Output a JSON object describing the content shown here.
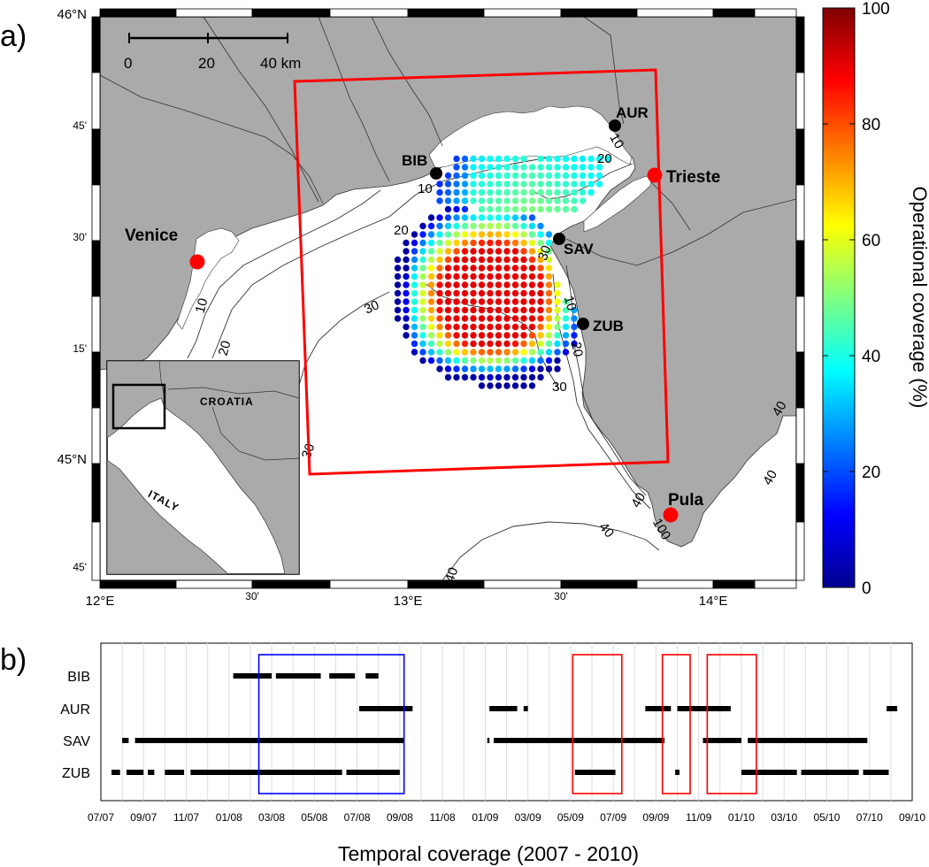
{
  "panel_labels": {
    "a": "a)",
    "b": "b)"
  },
  "map": {
    "lat_labels": [
      "46°N",
      "45'",
      "30'",
      "15'",
      "45°N",
      "45'"
    ],
    "lon_labels": [
      "12°E",
      "30'",
      "13°E",
      "30'",
      "14°E"
    ],
    "scale_bar": {
      "ticks": [
        "0",
        "20",
        "40 km"
      ]
    },
    "cities": [
      "Venice",
      "Trieste",
      "Pula"
    ],
    "stations": [
      "BIB",
      "AUR",
      "SAV",
      "ZUB"
    ],
    "contour_labels": [
      "10",
      "20",
      "10",
      "20",
      "30",
      "30",
      "10",
      "20",
      "30",
      "10",
      "20",
      "30",
      "40",
      "40",
      "40",
      "40",
      "40",
      "100"
    ],
    "inset_labels": {
      "croatia": "CROATIA",
      "italy": "ITALY"
    },
    "colors": {
      "land": "#aaaaaa",
      "sea": "#ffffff",
      "domain_box": "#ff0000",
      "city_marker": "#ff0000",
      "station_marker": "#000000"
    }
  },
  "colorbar": {
    "label": "Operational coverage (%)",
    "ticks": [
      "100",
      "80",
      "60",
      "40",
      "20",
      "0"
    ],
    "colormap": "jet",
    "range": [
      0,
      100
    ]
  },
  "chart_data": [
    {
      "type": "scatter",
      "description_of_values": "gridded HF radar operational coverage (%) over the northern Adriatic",
      "colorbar_range": [
        0,
        100
      ],
      "max_coverage_region": "central grid about 85-90 %",
      "min_coverage_region": "grid edges about 5-25 %",
      "stations": [
        "BIB",
        "AUR",
        "SAV",
        "ZUB"
      ]
    },
    {
      "type": "timeline",
      "xlabel": "Temporal coverage (2007 - 2010)",
      "x_tick_labels": [
        "07/07",
        "09/07",
        "11/07",
        "01/08",
        "03/08",
        "05/08",
        "07/08",
        "09/08",
        "11/08",
        "01/09",
        "03/09",
        "05/09",
        "07/09",
        "09/09",
        "11/09",
        "01/10",
        "03/10",
        "05/10",
        "07/10",
        "09/10"
      ],
      "x_range_month_index": [
        0,
        38
      ],
      "stations": [
        "BIB",
        "AUR",
        "SAV",
        "ZUB"
      ],
      "coverage_months": {
        "BIB": [
          [
            6.2,
            8.0
          ],
          [
            8.2,
            10.3
          ],
          [
            10.7,
            11.9
          ],
          [
            12.4,
            13.0
          ]
        ],
        "AUR": [
          [
            12.1,
            14.6
          ],
          [
            18.2,
            19.5
          ],
          [
            19.8,
            20.0
          ],
          [
            25.5,
            26.7
          ],
          [
            27.0,
            29.5
          ],
          [
            36.8,
            37.3
          ]
        ],
        "SAV": [
          [
            1.0,
            1.3
          ],
          [
            1.6,
            14.2
          ],
          [
            18.1,
            18.2
          ],
          [
            18.4,
            26.4
          ],
          [
            28.2,
            30.0
          ],
          [
            30.3,
            35.9
          ]
        ],
        "ZUB": [
          [
            0.5,
            0.9
          ],
          [
            1.2,
            2.0
          ],
          [
            2.2,
            2.5
          ],
          [
            3.0,
            3.9
          ],
          [
            4.2,
            11.3
          ],
          [
            11.5,
            14.0
          ],
          [
            22.2,
            24.1
          ],
          [
            26.9,
            27.1
          ],
          [
            30.0,
            32.6
          ],
          [
            32.8,
            35.5
          ],
          [
            35.7,
            36.9
          ]
        ]
      },
      "highlight_boxes": [
        {
          "color": "#0000ff",
          "start": 7.4,
          "end": 14.2
        },
        {
          "color": "#ff0000",
          "start": 22.1,
          "end": 24.4
        },
        {
          "color": "#ff0000",
          "start": 26.3,
          "end": 27.6
        },
        {
          "color": "#ff0000",
          "start": 28.4,
          "end": 30.7
        }
      ]
    }
  ]
}
